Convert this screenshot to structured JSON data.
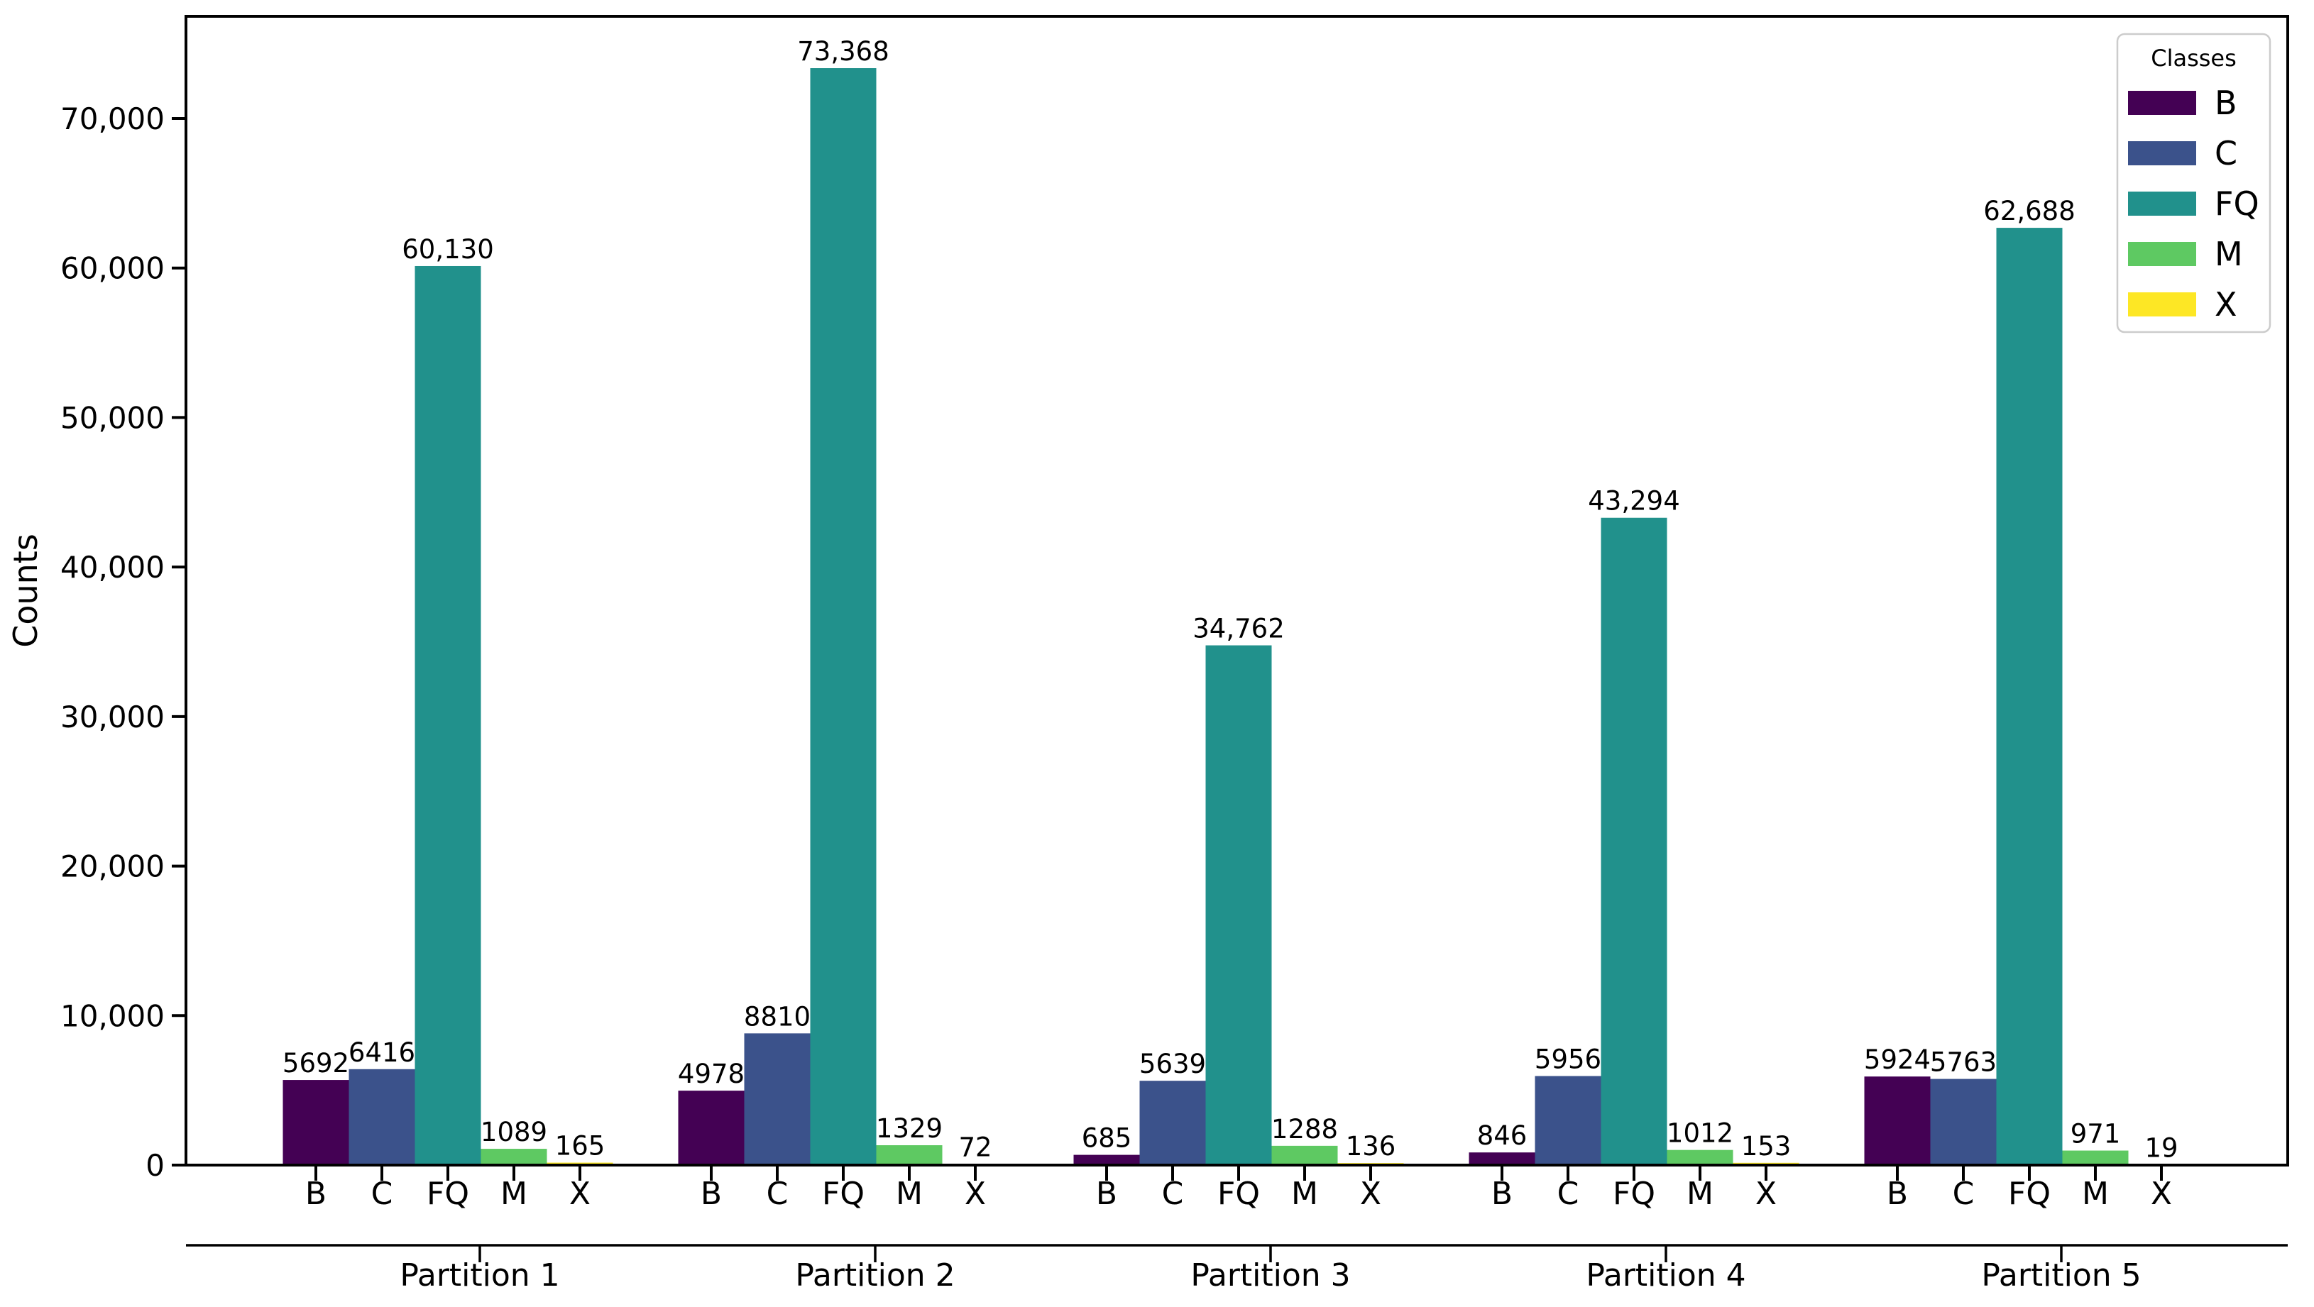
{
  "figure": {
    "ylabel": "Counts",
    "y_tick_labels": [
      "0",
      "10,000",
      "20,000",
      "30,000",
      "40,000",
      "50,000",
      "60,000",
      "70,000"
    ],
    "legend": {
      "title": "Classes",
      "entries": [
        {
          "label": "B",
          "color": "#440154"
        },
        {
          "label": "C",
          "color": "#3b528b"
        },
        {
          "label": "FQ",
          "color": "#21918c"
        },
        {
          "label": "M",
          "color": "#5ec962"
        },
        {
          "label": "X",
          "color": "#fde725"
        }
      ]
    }
  },
  "chart_data": {
    "type": "bar",
    "title": "",
    "xlabel": "",
    "ylabel": "Counts",
    "categories": [
      "Partition 1",
      "Partition 2",
      "Partition 3",
      "Partition 4",
      "Partition 5"
    ],
    "class_labels": [
      "B",
      "C",
      "FQ",
      "M",
      "X"
    ],
    "series": [
      {
        "name": "B",
        "color": "#440154",
        "values": [
          5692,
          4978,
          685,
          846,
          5924
        ],
        "labels": [
          "5692",
          "4978",
          "685",
          "846",
          "5924"
        ]
      },
      {
        "name": "C",
        "color": "#3b528b",
        "values": [
          6416,
          8810,
          5639,
          5956,
          5763
        ],
        "labels": [
          "6416",
          "8810",
          "5639",
          "5956",
          "5763"
        ]
      },
      {
        "name": "FQ",
        "color": "#21918c",
        "values": [
          60130,
          73368,
          34762,
          43294,
          62688
        ],
        "labels": [
          "60,130",
          "73,368",
          "34,762",
          "43,294",
          "62,688"
        ]
      },
      {
        "name": "M",
        "color": "#5ec962",
        "values": [
          1089,
          1329,
          1288,
          1012,
          971
        ],
        "labels": [
          "1089",
          "1329",
          "1288",
          "1012",
          "971"
        ]
      },
      {
        "name": "X",
        "color": "#fde725",
        "values": [
          165,
          72,
          136,
          153,
          19
        ],
        "labels": [
          "165",
          "72",
          "136",
          "153",
          "19"
        ]
      }
    ],
    "yticks": [
      0,
      10000,
      20000,
      30000,
      40000,
      50000,
      60000,
      70000
    ],
    "ylim": [
      0,
      76750
    ],
    "grid": false,
    "legend_title": "Classes",
    "legend_position": "upper right"
  }
}
